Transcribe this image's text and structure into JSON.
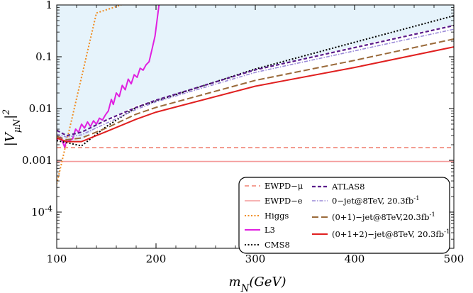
{
  "chart_data": {
    "type": "line",
    "xlabel": "m_N(GeV)",
    "ylabel": "|V_μN|^2",
    "xlim": [
      100,
      500
    ],
    "ylim": [
      2e-05,
      1
    ],
    "yscale": "log",
    "x_ticks": [
      100,
      200,
      300,
      400,
      500
    ],
    "x_tick_labels": [
      "100",
      "200",
      "300",
      "400",
      "500"
    ],
    "y_ticks": [
      0.0001,
      0.001,
      0.01,
      0.1,
      1
    ],
    "y_tick_labels": [
      "10^-4",
      "0.001",
      "0.01",
      "0.1",
      "1"
    ],
    "grid": false,
    "legend_position": "bottom-right",
    "shaded_region": {
      "color": "#e6f3fb",
      "points": [
        [
          100,
          0.0035
        ],
        [
          110,
          0.0022
        ],
        [
          125,
          0.0024
        ],
        [
          135,
          0.0035
        ],
        [
          145,
          0.0055
        ],
        [
          160,
          0.0075
        ],
        [
          180,
          0.0115
        ],
        [
          200,
          0.0145
        ],
        [
          300,
          0.055
        ],
        [
          400,
          0.16
        ],
        [
          500,
          0.42
        ]
      ]
    },
    "series": [
      {
        "name": "EWPD−μ",
        "color": "#f08070",
        "dash": "6,4",
        "width": 1.6,
        "x": [
          100,
          500
        ],
        "y": [
          0.00175,
          0.00175
        ]
      },
      {
        "name": "EWPD−e",
        "color": "#f49a9a",
        "dash": "",
        "width": 1.6,
        "x": [
          100,
          500
        ],
        "y": [
          0.00095,
          0.00095
        ]
      },
      {
        "name": "Higgs",
        "color": "#f08c22",
        "dash": "2,2.5",
        "width": 2,
        "x": [
          100,
          140,
          165
        ],
        "y": [
          0.00035,
          0.7,
          1
        ]
      },
      {
        "name": "L3",
        "color": "#e020e0",
        "dash": "",
        "width": 2,
        "x": [
          100,
          104,
          108,
          110,
          113,
          116,
          119,
          122,
          125,
          128,
          131,
          134,
          137,
          140,
          143,
          146,
          149,
          152,
          155,
          157,
          160,
          163,
          166,
          169,
          172,
          175,
          178,
          181,
          184,
          187,
          190,
          193,
          196,
          199,
          201,
          203
        ],
        "y": [
          0.0025,
          0.0028,
          0.0018,
          0.0025,
          0.0024,
          0.0026,
          0.004,
          0.0035,
          0.005,
          0.0042,
          0.0055,
          0.0045,
          0.0058,
          0.005,
          0.0065,
          0.006,
          0.0075,
          0.009,
          0.015,
          0.012,
          0.02,
          0.017,
          0.028,
          0.023,
          0.037,
          0.03,
          0.045,
          0.04,
          0.06,
          0.055,
          0.07,
          0.08,
          0.14,
          0.25,
          0.5,
          1
        ]
      },
      {
        "name": "CMS8",
        "color": "#000000",
        "dash": "2,2.5",
        "width": 2,
        "x": [
          100,
          110,
          125,
          150,
          180,
          200,
          300,
          400,
          500
        ],
        "y": [
          0.0024,
          0.0022,
          0.0019,
          0.0045,
          0.0105,
          0.014,
          0.058,
          0.19,
          0.62
        ]
      },
      {
        "name": "ATLAS8",
        "color": "#5a1a8a",
        "dash": "5,3",
        "width": 2.2,
        "x": [
          100,
          110,
          125,
          150,
          180,
          200,
          300,
          400,
          500
        ],
        "y": [
          0.0038,
          0.003,
          0.0035,
          0.006,
          0.0105,
          0.0145,
          0.056,
          0.15,
          0.4
        ]
      },
      {
        "name": "0−jet@8TeV, 20.3fb^-1",
        "color": "#9a8ad8",
        "dash": "5,2,1.5,2",
        "width": 1.6,
        "x": [
          100,
          110,
          125,
          150,
          180,
          200,
          300,
          400,
          500
        ],
        "y": [
          0.0032,
          0.0028,
          0.0031,
          0.0052,
          0.0096,
          0.0135,
          0.05,
          0.13,
          0.34
        ]
      },
      {
        "name": "(0+1)−jet@8TeV,20.3fb^-1",
        "color": "#9a6a3a",
        "dash": "9,4",
        "width": 2,
        "x": [
          100,
          110,
          125,
          150,
          180,
          200,
          300,
          400,
          500
        ],
        "y": [
          0.0029,
          0.0025,
          0.0027,
          0.0042,
          0.0078,
          0.0105,
          0.035,
          0.085,
          0.22
        ]
      },
      {
        "name": "(0+1+2)−jet@8TeV, 20.3fb^-1",
        "color": "#e02020",
        "dash": "",
        "width": 2,
        "x": [
          100,
          110,
          125,
          150,
          180,
          200,
          300,
          400,
          500
        ],
        "y": [
          0.0027,
          0.0023,
          0.0023,
          0.0036,
          0.0062,
          0.0085,
          0.027,
          0.062,
          0.155
        ]
      }
    ]
  }
}
